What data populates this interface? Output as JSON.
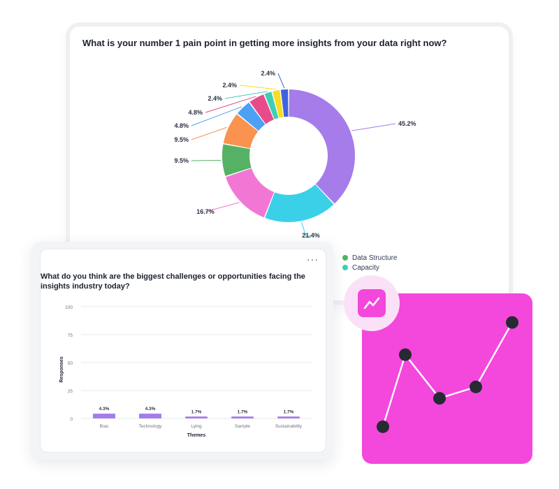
{
  "donut_card": {
    "question": "What is your number 1 pain point in getting more insights from your data right now?",
    "legend": [
      {
        "label": "Data Structure",
        "color": "#55b264"
      },
      {
        "label": "Capacity",
        "color": "#3ecfb2"
      }
    ]
  },
  "bar_card": {
    "question": "What do you think are the biggest challenges or opportunities facing the insights industry today?",
    "menu_icon": "more-dots-icon"
  },
  "graph_tile": {
    "icon": "line-chart-icon",
    "line_color": "#ffffff",
    "point_color": "#262a33"
  },
  "chart_data": [
    {
      "type": "pie",
      "donut": true,
      "values": [
        45.2,
        21.4,
        16.7,
        9.5,
        9.5,
        4.8,
        4.8,
        2.4,
        2.4,
        2.4
      ],
      "labels": [
        "45.2%",
        "21.4%",
        "16.7%",
        "9.5%",
        "9.5%",
        "4.8%",
        "4.8%",
        "2.4%",
        "2.4%",
        "2.4%"
      ],
      "colors": [
        "#a57cea",
        "#3ad0e8",
        "#f277d4",
        "#55b264",
        "#fa9250",
        "#4da1f4",
        "#e74b8a",
        "#3ecfb2",
        "#f8dc22",
        "#3e63dd"
      ],
      "legend_placement": "bottom-right"
    },
    {
      "type": "bar",
      "categories": [
        "Bias",
        "Technology",
        "Lying",
        "Sample",
        "Sustainability"
      ],
      "values": [
        4.3,
        4.3,
        1.7,
        1.7,
        1.7
      ],
      "data_labels": [
        "4.3%",
        "4.3%",
        "1.7%",
        "1.7%",
        "1.7%"
      ],
      "xlabel": "Themes",
      "ylabel": "Responses",
      "ylim": [
        0,
        100
      ],
      "yticks": [
        0,
        25,
        50,
        75,
        100
      ],
      "grid": true,
      "color": "#a57cea"
    },
    {
      "type": "line",
      "values": [
        1,
        4.8,
        2.5,
        3.1,
        6.5
      ],
      "color": "#ffffff"
    }
  ]
}
